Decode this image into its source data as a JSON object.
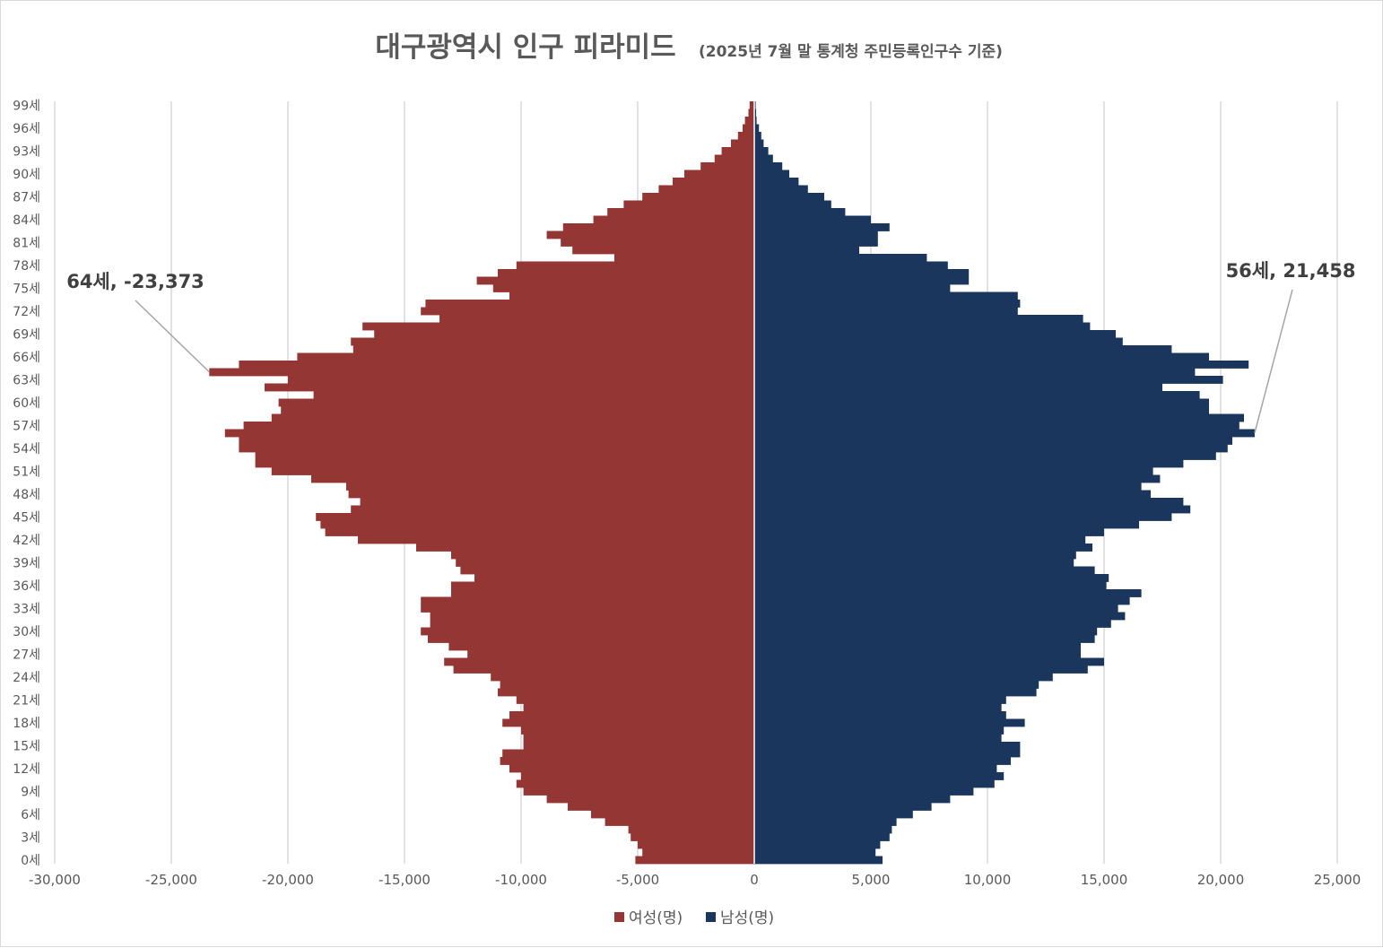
{
  "chart_data": {
    "type": "bar",
    "orientation": "horizontal",
    "layout": "population-pyramid",
    "title": "대구광역시 인구 피라미드",
    "subtitle": "(2025년 7월 말 통계청 주민등록인구수 기준)",
    "age_unit": "세",
    "ages": [
      0,
      1,
      2,
      3,
      4,
      5,
      6,
      7,
      8,
      9,
      10,
      11,
      12,
      13,
      14,
      15,
      16,
      17,
      18,
      19,
      20,
      21,
      22,
      23,
      24,
      25,
      26,
      27,
      28,
      29,
      30,
      31,
      32,
      33,
      34,
      35,
      36,
      37,
      38,
      39,
      40,
      41,
      42,
      43,
      44,
      45,
      46,
      47,
      48,
      49,
      50,
      51,
      52,
      53,
      54,
      55,
      56,
      57,
      58,
      59,
      60,
      61,
      62,
      63,
      64,
      65,
      66,
      67,
      68,
      69,
      70,
      71,
      72,
      73,
      74,
      75,
      76,
      77,
      78,
      79,
      80,
      81,
      82,
      83,
      84,
      85,
      86,
      87,
      88,
      89,
      90,
      91,
      92,
      93,
      94,
      95,
      96,
      97,
      98,
      99
    ],
    "y_tick_labels": [
      "0세",
      "3세",
      "6세",
      "9세",
      "12세",
      "15세",
      "18세",
      "21세",
      "24세",
      "27세",
      "30세",
      "33세",
      "36세",
      "39세",
      "42세",
      "45세",
      "48세",
      "51세",
      "54세",
      "57세",
      "60세",
      "63세",
      "66세",
      "69세",
      "72세",
      "75세",
      "78세",
      "81세",
      "84세",
      "87세",
      "90세",
      "93세",
      "96세",
      "99세"
    ],
    "xlim": [
      -30000,
      25000
    ],
    "x_ticks": [
      -30000,
      -25000,
      -20000,
      -15000,
      -10000,
      -5000,
      0,
      5000,
      10000,
      15000,
      20000,
      25000
    ],
    "x_tick_labels": [
      "-30,000",
      "-25,000",
      "-20,000",
      "-15,000",
      "-10,000",
      "-5,000",
      "0",
      "5,000",
      "10,000",
      "15,000",
      "20,000",
      "25,000"
    ],
    "grid": "vertical",
    "legend_position": "bottom",
    "series": [
      {
        "name": "여성(명)",
        "color": "#943634",
        "values": [
          -5100,
          -4800,
          -5000,
          -5300,
          -5400,
          -6400,
          -7000,
          -8000,
          -8900,
          -9900,
          -10200,
          -10000,
          -10500,
          -10900,
          -10800,
          -9900,
          -9900,
          -10000,
          -10800,
          -10500,
          -9900,
          -10200,
          -11000,
          -10900,
          -11300,
          -12900,
          -13300,
          -12300,
          -13100,
          -14000,
          -14300,
          -13900,
          -13900,
          -14300,
          -14300,
          -13000,
          -13000,
          -12000,
          -12600,
          -12800,
          -13000,
          -14500,
          -17000,
          -18400,
          -18600,
          -18800,
          -17300,
          -16900,
          -17400,
          -17500,
          -19000,
          -20700,
          -21400,
          -21400,
          -22100,
          -22100,
          -22700,
          -21900,
          -20700,
          -20300,
          -20400,
          -18900,
          -21000,
          -20000,
          -23373,
          -22100,
          -19600,
          -17200,
          -17300,
          -16300,
          -16800,
          -13500,
          -14300,
          -14100,
          -10500,
          -11200,
          -11900,
          -11000,
          -10200,
          -6000,
          -7800,
          -8300,
          -8900,
          -8200,
          -6900,
          -6300,
          -5600,
          -4800,
          -4100,
          -3500,
          -3000,
          -2300,
          -1700,
          -1400,
          -1000,
          -700,
          -500,
          -400,
          -250,
          -200
        ]
      },
      {
        "name": "남성(명)",
        "color": "#1a365d",
        "values": [
          5500,
          5200,
          5400,
          5800,
          5900,
          6100,
          6800,
          7600,
          8400,
          9400,
          10300,
          10700,
          10400,
          11000,
          11400,
          11400,
          10600,
          10700,
          11600,
          10800,
          10600,
          10800,
          12100,
          12200,
          12800,
          14300,
          15000,
          14000,
          14000,
          14600,
          14700,
          15300,
          15900,
          15600,
          16100,
          16600,
          15100,
          15200,
          14600,
          13700,
          13800,
          14500,
          14200,
          15000,
          16500,
          17900,
          18700,
          18400,
          17000,
          16600,
          17400,
          17100,
          18400,
          19800,
          20300,
          20500,
          21458,
          20800,
          21000,
          19500,
          19500,
          19100,
          17500,
          20100,
          18900,
          21200,
          19500,
          17900,
          15800,
          15500,
          14400,
          14100,
          11300,
          11400,
          11300,
          8400,
          9200,
          9200,
          8300,
          7400,
          4500,
          5300,
          5300,
          5800,
          5000,
          3900,
          3300,
          3000,
          2300,
          1900,
          1500,
          1200,
          800,
          600,
          400,
          300,
          200,
          100,
          80,
          60
        ]
      }
    ],
    "annotations": [
      {
        "text": "64세, -23,373",
        "age": 64,
        "value": -23373
      },
      {
        "text": "56세, 21,458",
        "age": 56,
        "value": 21458
      }
    ]
  }
}
